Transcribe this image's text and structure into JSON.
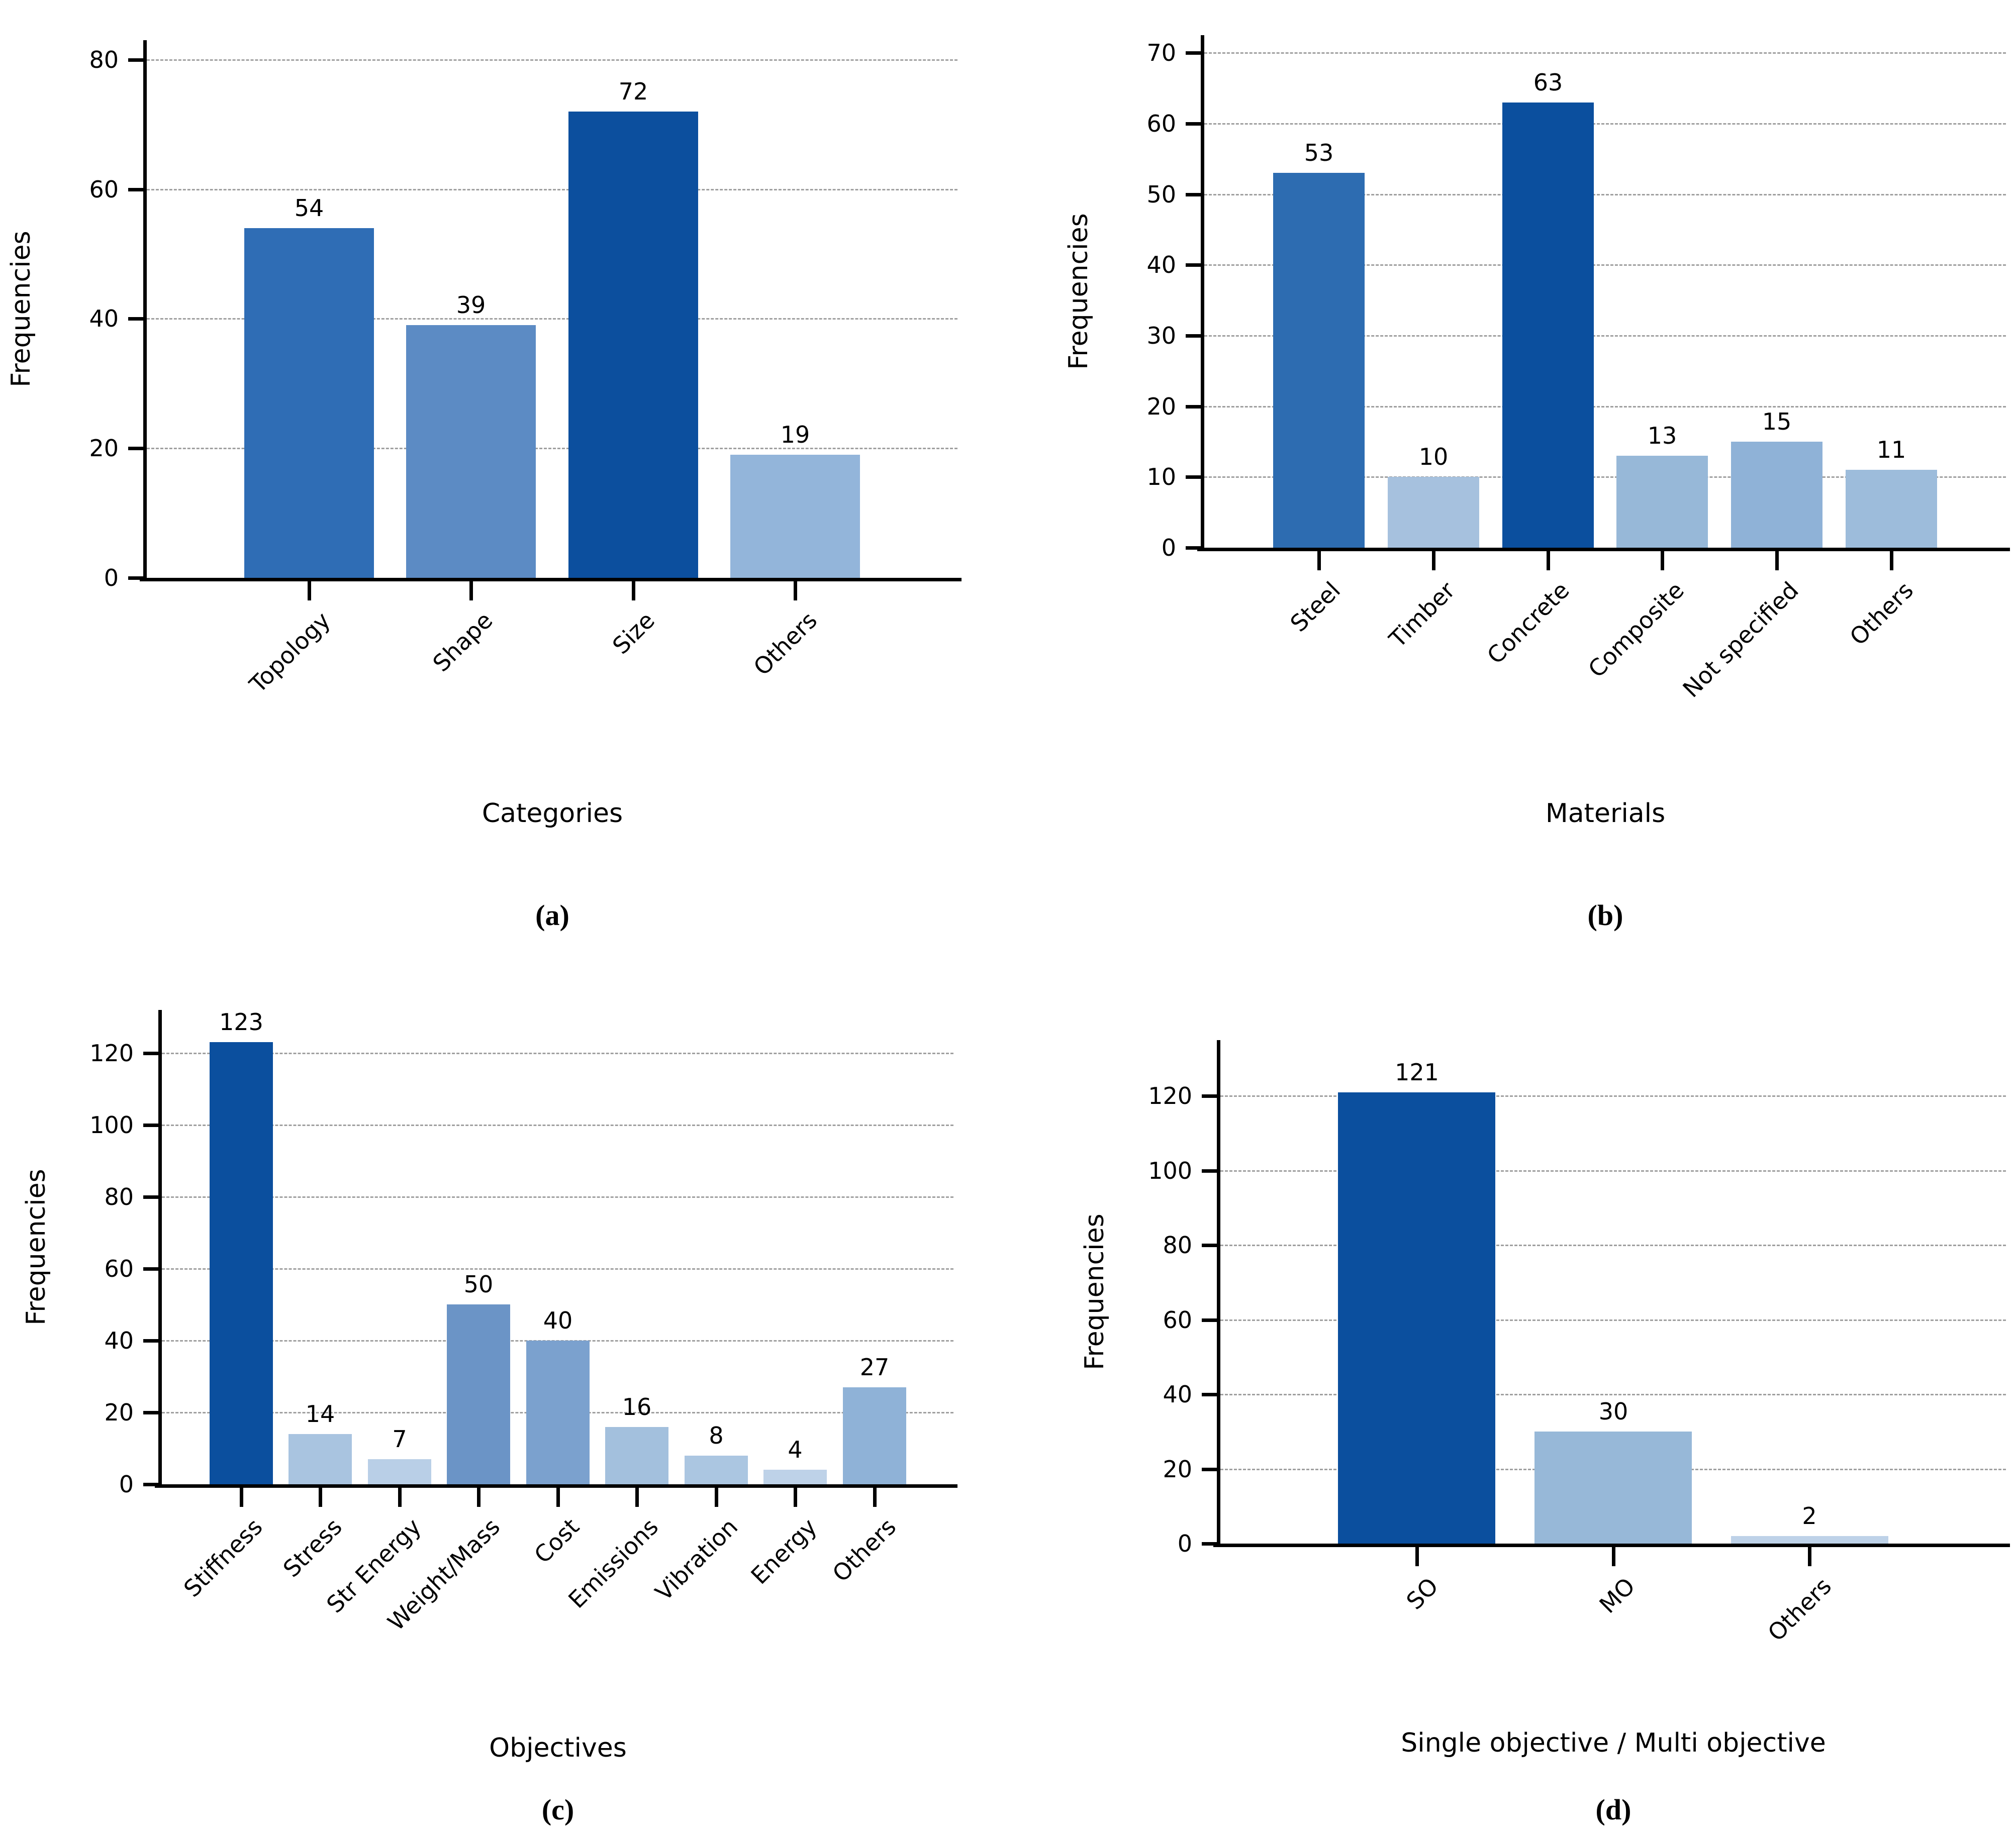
{
  "figure": {
    "background": "#ffffff",
    "axis_color": "#000000",
    "grid_color": "#a0a0a0",
    "ylabel": "Frequencies"
  },
  "chart_data": [
    {
      "id": "a",
      "type": "bar",
      "caption": "(a)",
      "xlabel": "Categories",
      "ylabel": "Frequencies",
      "categories": [
        "Topology",
        "Shape",
        "Size",
        "Others"
      ],
      "values": [
        54,
        39,
        72,
        19
      ],
      "colors": [
        "#2f6db5",
        "#5c8bc4",
        "#0c4f9e",
        "#93b5da"
      ],
      "yticks": [
        0,
        20,
        40,
        60,
        80
      ],
      "ylim": [
        0,
        83
      ],
      "grid": "on",
      "legend": "none"
    },
    {
      "id": "b",
      "type": "bar",
      "caption": "(b)",
      "xlabel": "Materials",
      "ylabel": "Frequencies",
      "categories": [
        "Steel",
        "Timber",
        "Concrete",
        "Composite",
        "Not specified",
        "Others"
      ],
      "values": [
        53,
        10,
        63,
        13,
        15,
        11
      ],
      "colors": [
        "#2d6cb1",
        "#a6c1de",
        "#0b4f9e",
        "#97b8d8",
        "#8fb2d7",
        "#9dbcdb"
      ],
      "yticks": [
        0,
        10,
        20,
        30,
        40,
        50,
        60,
        70
      ],
      "ylim": [
        0,
        72.5
      ],
      "grid": "on",
      "legend": "none"
    },
    {
      "id": "c",
      "type": "bar",
      "caption": "(c)",
      "xlabel": "Objectives",
      "ylabel": "Frequencies",
      "categories": [
        "Stiffness",
        "Stress",
        "Str Energy",
        "Weight/Mass",
        "Cost",
        "Emissions",
        "Vibration",
        "Energy",
        "Others"
      ],
      "values": [
        123,
        14,
        7,
        50,
        40,
        16,
        8,
        4,
        27
      ],
      "colors": [
        "#0b4f9e",
        "#a9c4e0",
        "#b9cfe7",
        "#6b94c6",
        "#7ba1ce",
        "#a3c0dd",
        "#abc6e1",
        "#bed2e8",
        "#8fb2d7"
      ],
      "yticks": [
        0,
        20,
        40,
        60,
        80,
        100,
        120
      ],
      "ylim": [
        0,
        132
      ],
      "grid": "on",
      "legend": "none"
    },
    {
      "id": "d",
      "type": "bar",
      "caption": "(d)",
      "xlabel": "Single objective / Multi objective",
      "ylabel": "Frequencies",
      "categories": [
        "SO",
        "MO",
        "Others"
      ],
      "values": [
        121,
        30,
        2
      ],
      "colors": [
        "#0b4f9e",
        "#97b8d8",
        "#bed2e8"
      ],
      "yticks": [
        0,
        20,
        40,
        60,
        80,
        100,
        120
      ],
      "ylim": [
        0,
        135
      ],
      "grid": "on",
      "legend": "none"
    }
  ]
}
